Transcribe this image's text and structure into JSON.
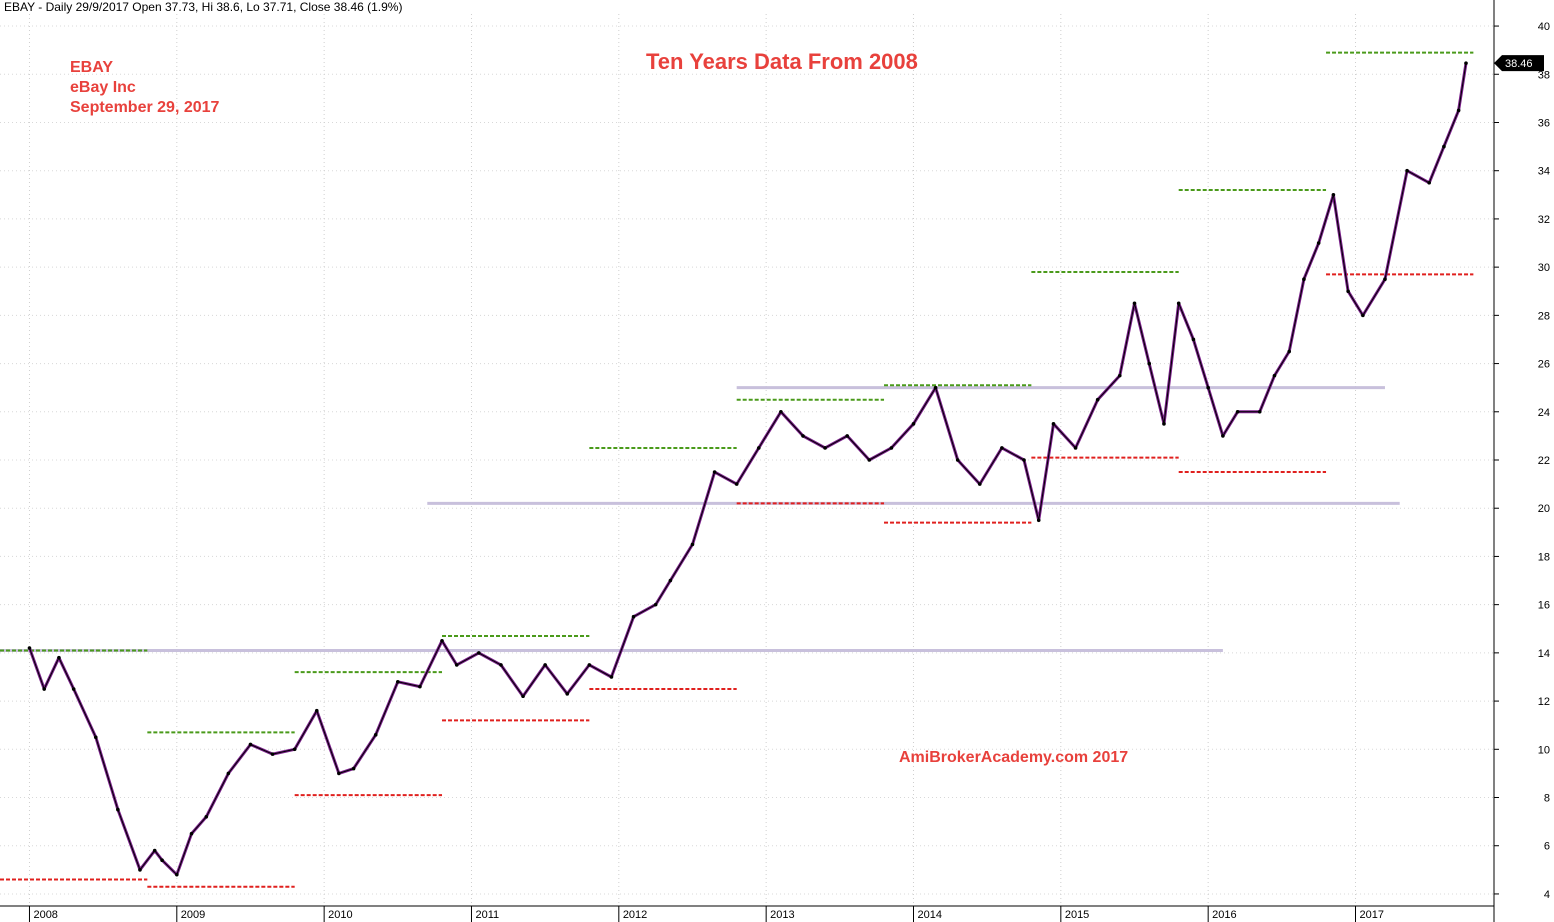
{
  "header_text": "EBAY - Daily 29/9/2017 Open 37.73, Hi 38.6, Lo 37.71, Close 38.46 (1.9%)",
  "annotations": {
    "symbol": "EBAY",
    "company": "eBay Inc",
    "date": "September 29, 2017",
    "title": "Ten Years Data From 2008",
    "watermark": "AmiBrokerAcademy.com  2017"
  },
  "colors": {
    "annotation_red": "#e8413c",
    "support_red": "#e0201e",
    "resistance_green": "#4a9a1a",
    "horizontal_lavender": "#c8c0dc",
    "candle_purple": "#7a1f8a"
  },
  "chart_data": {
    "type": "line",
    "ticker": "EBAY",
    "last_close_label": "38.46",
    "x": [
      2008.0,
      2008.1,
      2008.2,
      2008.3,
      2008.45,
      2008.6,
      2008.75,
      2008.85,
      2008.9,
      2009.0,
      2009.1,
      2009.2,
      2009.35,
      2009.5,
      2009.65,
      2009.8,
      2009.95,
      2010.1,
      2010.2,
      2010.35,
      2010.5,
      2010.65,
      2010.8,
      2010.9,
      2011.05,
      2011.2,
      2011.35,
      2011.5,
      2011.65,
      2011.8,
      2011.95,
      2012.1,
      2012.25,
      2012.35,
      2012.5,
      2012.65,
      2012.8,
      2012.95,
      2013.1,
      2013.25,
      2013.4,
      2013.55,
      2013.7,
      2013.85,
      2014.0,
      2014.15,
      2014.3,
      2014.45,
      2014.6,
      2014.75,
      2014.85,
      2014.95,
      2015.1,
      2015.25,
      2015.4,
      2015.5,
      2015.6,
      2015.7,
      2015.8,
      2015.9,
      2016.0,
      2016.1,
      2016.2,
      2016.35,
      2016.45,
      2016.55,
      2016.65,
      2016.75,
      2016.85,
      2016.95,
      2017.05,
      2017.2,
      2017.35,
      2017.5,
      2017.6,
      2017.7,
      2017.75
    ],
    "values": [
      14.2,
      12.5,
      13.8,
      12.5,
      10.5,
      7.5,
      5.0,
      5.8,
      5.4,
      4.8,
      6.5,
      7.2,
      9.0,
      10.2,
      9.8,
      10.0,
      11.6,
      9.0,
      9.2,
      10.6,
      12.8,
      12.6,
      14.5,
      13.5,
      14.0,
      13.5,
      12.2,
      13.5,
      12.3,
      13.5,
      13.0,
      15.5,
      16.0,
      17.0,
      18.5,
      21.5,
      21.0,
      22.5,
      24.0,
      23.0,
      22.5,
      23.0,
      22.0,
      22.5,
      23.5,
      25.0,
      22.0,
      21.0,
      22.5,
      22.0,
      19.5,
      23.5,
      22.5,
      24.5,
      25.5,
      28.5,
      26.0,
      23.5,
      28.5,
      27.0,
      25.0,
      23.0,
      24.0,
      24.0,
      25.5,
      26.5,
      29.5,
      31.0,
      33.0,
      29.0,
      28.0,
      29.5,
      34.0,
      33.5,
      35.0,
      36.5,
      38.46
    ],
    "xlabel": "",
    "ylabel": "",
    "ylim": [
      3.5,
      40.5
    ],
    "xlim": [
      2007.8,
      2017.94
    ],
    "y_ticks": [
      4,
      6,
      8,
      10,
      12,
      14,
      16,
      18,
      20,
      22,
      24,
      26,
      28,
      30,
      32,
      34,
      36,
      38,
      40
    ],
    "x_tick_labels": [
      {
        "year": 2008,
        "label": "2008"
      },
      {
        "year": 2009,
        "label": "2009"
      },
      {
        "year": 2010,
        "label": "2010"
      },
      {
        "year": 2011,
        "label": "2011"
      },
      {
        "year": 2012,
        "label": "2012"
      },
      {
        "year": 2013,
        "label": "2013"
      },
      {
        "year": 2014,
        "label": "2014"
      },
      {
        "year": 2015,
        "label": "2015"
      },
      {
        "year": 2016,
        "label": "2016"
      },
      {
        "year": 2017,
        "label": "2017"
      }
    ],
    "resistance_lines": [
      {
        "x0": 2007.8,
        "x1": 2008.8,
        "y": 14.1
      },
      {
        "x0": 2008.8,
        "x1": 2009.8,
        "y": 10.7
      },
      {
        "x0": 2009.8,
        "x1": 2010.8,
        "y": 13.2
      },
      {
        "x0": 2010.8,
        "x1": 2011.8,
        "y": 14.7
      },
      {
        "x0": 2011.8,
        "x1": 2012.8,
        "y": 22.5
      },
      {
        "x0": 2012.8,
        "x1": 2013.8,
        "y": 24.5
      },
      {
        "x0": 2013.8,
        "x1": 2014.8,
        "y": 25.1
      },
      {
        "x0": 2014.8,
        "x1": 2015.8,
        "y": 29.8
      },
      {
        "x0": 2015.8,
        "x1": 2016.8,
        "y": 33.2
      },
      {
        "x0": 2016.8,
        "x1": 2017.8,
        "y": 38.9
      }
    ],
    "support_lines": [
      {
        "x0": 2007.8,
        "x1": 2008.8,
        "y": 4.6
      },
      {
        "x0": 2008.8,
        "x1": 2009.8,
        "y": 4.3
      },
      {
        "x0": 2009.8,
        "x1": 2010.8,
        "y": 8.1
      },
      {
        "x0": 2010.8,
        "x1": 2011.8,
        "y": 11.2
      },
      {
        "x0": 2011.8,
        "x1": 2012.8,
        "y": 12.5
      },
      {
        "x0": 2012.8,
        "x1": 2013.8,
        "y": 20.2
      },
      {
        "x0": 2013.8,
        "x1": 2014.8,
        "y": 19.4
      },
      {
        "x0": 2014.8,
        "x1": 2015.8,
        "y": 22.1
      },
      {
        "x0": 2015.8,
        "x1": 2016.8,
        "y": 21.5
      },
      {
        "x0": 2016.8,
        "x1": 2017.8,
        "y": 29.7
      }
    ],
    "horizontal_lines": [
      {
        "x0": 2007.8,
        "x1": 2016.1,
        "y": 14.1
      },
      {
        "x0": 2010.7,
        "x1": 2017.3,
        "y": 20.2
      },
      {
        "x0": 2012.8,
        "x1": 2017.2,
        "y": 25.0
      }
    ],
    "grid": true,
    "legend": "none"
  }
}
